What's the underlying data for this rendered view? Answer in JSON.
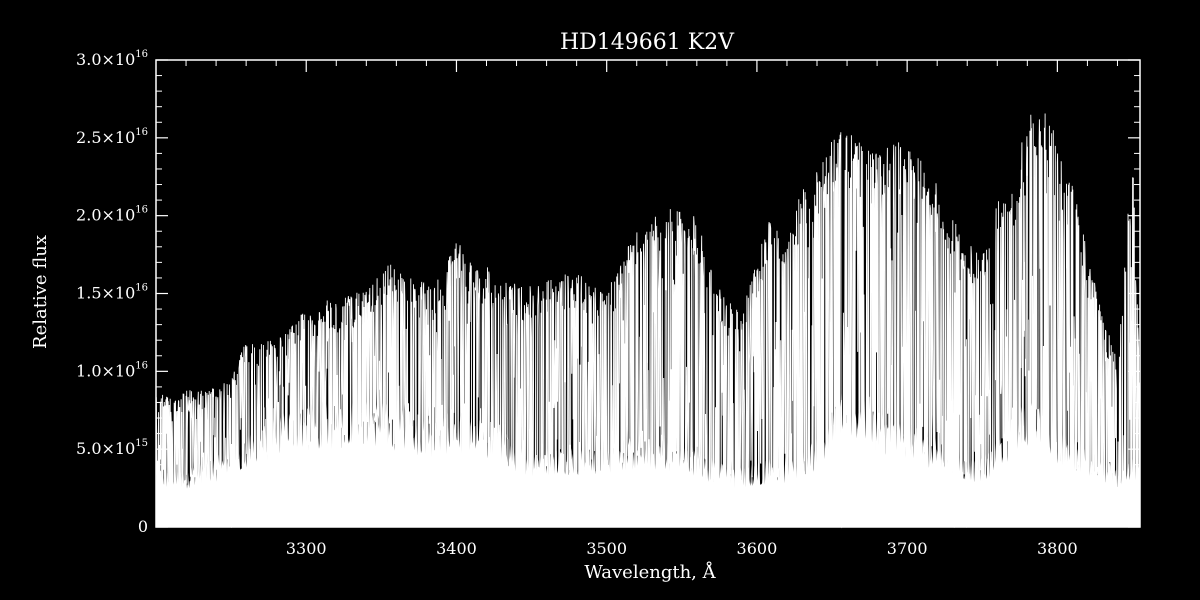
{
  "chart_data": {
    "type": "line",
    "title": "HD149661   K2V",
    "xlabel": "Wavelength, Å",
    "ylabel": "Relative flux",
    "xlim": [
      3200,
      3855
    ],
    "ylim": [
      0,
      3e+16
    ],
    "x_ticks": [
      {
        "value": 3300,
        "label": "3300"
      },
      {
        "value": 3400,
        "label": "3400"
      },
      {
        "value": 3500,
        "label": "3500"
      },
      {
        "value": 3600,
        "label": "3600"
      },
      {
        "value": 3700,
        "label": "3700"
      },
      {
        "value": 3800,
        "label": "3800"
      }
    ],
    "y_ticks": [
      {
        "value": 0,
        "mant": "0",
        "exp": ""
      },
      {
        "value": 5000000000000000.0,
        "mant": "5.0×10",
        "exp": "15"
      },
      {
        "value": 1e+16,
        "mant": "1.0×10",
        "exp": "16"
      },
      {
        "value": 1.5e+16,
        "mant": "1.5×10",
        "exp": "16"
      },
      {
        "value": 2e+16,
        "mant": "2.0×10",
        "exp": "16"
      },
      {
        "value": 2.5e+16,
        "mant": "2.5×10",
        "exp": "16"
      },
      {
        "value": 3e+16,
        "mant": "3.0×10",
        "exp": "16"
      }
    ],
    "grid": false,
    "background": "#000000",
    "line_color": "#ffffff",
    "envelope": {
      "wavelength": [
        3200,
        3210,
        3220,
        3230,
        3240,
        3250,
        3260,
        3270,
        3280,
        3290,
        3300,
        3320,
        3340,
        3355,
        3370,
        3385,
        3400,
        3415,
        3430,
        3440,
        3450,
        3470,
        3490,
        3500,
        3520,
        3540,
        3560,
        3570,
        3580,
        3590,
        3600,
        3610,
        3620,
        3630,
        3640,
        3650,
        3660,
        3670,
        3680,
        3690,
        3700,
        3710,
        3720,
        3730,
        3740,
        3750,
        3760,
        3770,
        3780,
        3790,
        3800,
        3810,
        3820,
        3830,
        3840,
        3850,
        3855
      ],
      "flux_max": [
        8500000000000000.0,
        8500000000000000.0,
        8800000000000000.0,
        8800000000000000.0,
        9000000000000000.0,
        9500000000000000.0,
        1.2e+16,
        1.2e+16,
        1.22e+16,
        1.3e+16,
        1.4e+16,
        1.48e+16,
        1.52e+16,
        1.7e+16,
        1.6e+16,
        1.55e+16,
        1.85e+16,
        1.65e+16,
        1.7e+16,
        1.55e+16,
        1.55e+16,
        1.65e+16,
        1.6e+16,
        1.55e+16,
        1.9e+16,
        2.05e+16,
        2e+16,
        1.65e+16,
        1.45e+16,
        1.4e+16,
        1.7e+16,
        2.1e+16,
        1.8e+16,
        2.2e+16,
        2.3e+16,
        2.5e+16,
        2.58e+16,
        2.45e+16,
        2.4e+16,
        2.48e+16,
        2.5e+16,
        2.35e+16,
        2.2e+16,
        2e+16,
        1.85e+16,
        1.8e+16,
        2.1e+16,
        2.2e+16,
        2.65e+16,
        2.68e+16,
        2.55e+16,
        2.2e+16,
        1.8e+16,
        1.35e+16,
        1.1e+16,
        2.45e+16,
        9500000000000000.0
      ],
      "flux_mid": [
        3000000000000000.0,
        3000000000000000.0,
        3000000000000000.0,
        3500000000000000.0,
        3500000000000000.0,
        4000000000000000.0,
        4500000000000000.0,
        5000000000000000.0,
        5500000000000000.0,
        6000000000000000.0,
        6000000000000000.0,
        6200000000000000.0,
        6500000000000000.0,
        6200000000000000.0,
        5800000000000000.0,
        5500000000000000.0,
        6000000000000000.0,
        5500000000000000.0,
        5000000000000000.0,
        4200000000000000.0,
        4000000000000000.0,
        4200000000000000.0,
        4000000000000000.0,
        4200000000000000.0,
        4500000000000000.0,
        4500000000000000.0,
        4000000000000000.0,
        3500000000000000.0,
        3000000000000000.0,
        3000000000000000.0,
        3200000000000000.0,
        3500000000000000.0,
        3500000000000000.0,
        4000000000000000.0,
        4500000000000000.0,
        6000000000000000.0,
        7000000000000000.0,
        6500000000000000.0,
        6000000000000000.0,
        5500000000000000.0,
        5500000000000000.0,
        5000000000000000.0,
        4500000000000000.0,
        4000000000000000.0,
        3500000000000000.0,
        3500000000000000.0,
        4500000000000000.0,
        5500000000000000.0,
        6500000000000000.0,
        6000000000000000.0,
        5000000000000000.0,
        4500000000000000.0,
        4000000000000000.0,
        3500000000000000.0,
        3000000000000000.0,
        3500000000000000.0,
        3000000000000000.0
      ]
    }
  }
}
